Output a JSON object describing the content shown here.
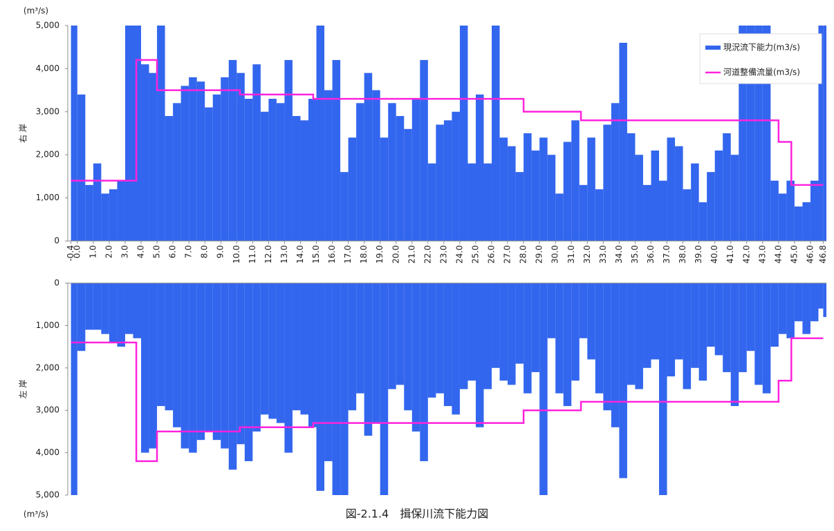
{
  "chart_data": [
    {
      "type": "bar",
      "units": "(m³/s)",
      "ylabel": "右 岸",
      "legend": "upper right",
      "inverted": false,
      "xlim": [
        -0.6,
        47.0
      ],
      "ylim": [
        0,
        5000
      ],
      "yticks": [
        0,
        {
          "value": 1000,
          "label": "1,000"
        },
        {
          "value": 2000,
          "label": "2,000"
        },
        {
          "value": 3000,
          "label": "3,000"
        },
        {
          "value": 4000,
          "label": "4,000"
        },
        {
          "value": 5000,
          "label": "5,000"
        }
      ],
      "xticks": [
        -0.4,
        {
          "value": 0,
          "label": "0.0"
        },
        {
          "value": 1,
          "label": "1.0"
        },
        {
          "value": 2,
          "label": "2.0"
        },
        {
          "value": 3,
          "label": "3.0"
        },
        {
          "value": 4,
          "label": "4.0"
        },
        {
          "value": 5,
          "label": "5.0"
        },
        {
          "value": 6,
          "label": "6.0"
        },
        {
          "value": 7,
          "label": "7.0"
        },
        {
          "value": 8,
          "label": "8.0"
        },
        {
          "value": 9,
          "label": "9.0"
        },
        {
          "value": 10,
          "label": "10.0"
        },
        {
          "value": 11,
          "label": "11.0"
        },
        {
          "value": 12,
          "label": "12.0"
        },
        {
          "value": 13,
          "label": "13.0"
        },
        {
          "value": 14,
          "label": "14.0"
        },
        {
          "value": 15,
          "label": "15.0"
        },
        {
          "value": 16,
          "label": "16.0"
        },
        {
          "value": 17,
          "label": "17.0"
        },
        {
          "value": 18,
          "label": "18.0"
        },
        {
          "value": 19,
          "label": "19.0"
        },
        {
          "value": 20,
          "label": "20.0"
        },
        {
          "value": 21,
          "label": "21.0"
        },
        {
          "value": 22,
          "label": "22.0"
        },
        {
          "value": 23,
          "label": "23.0"
        },
        {
          "value": 24,
          "label": "24.0"
        },
        {
          "value": 25,
          "label": "25.0"
        },
        {
          "value": 26,
          "label": "26.0"
        },
        {
          "value": 27,
          "label": "27.0"
        },
        {
          "value": 28,
          "label": "28.0"
        },
        {
          "value": 29,
          "label": "29.0"
        },
        {
          "value": 30,
          "label": "30.0"
        },
        {
          "value": 31,
          "label": "31.0"
        },
        {
          "value": 32,
          "label": "32.0"
        },
        {
          "value": 33,
          "label": "33.0"
        },
        {
          "value": 34,
          "label": "34.0"
        },
        {
          "value": 35,
          "label": "35.0"
        },
        {
          "value": 36,
          "label": "36.0"
        },
        {
          "value": 37,
          "label": "37.0"
        },
        {
          "value": 38,
          "label": "38.0"
        },
        {
          "value": 39,
          "label": "39.0"
        },
        {
          "value": 40,
          "label": "40.0"
        },
        {
          "value": 41,
          "label": "41.0"
        },
        {
          "value": 42,
          "label": "42.0"
        },
        {
          "value": 43,
          "label": "43.0"
        },
        {
          "value": 44,
          "label": "44.0"
        },
        {
          "value": 45,
          "label": "45.0"
        },
        {
          "value": 46,
          "label": "46.0"
        },
        46.8
      ],
      "x": [
        -0.4,
        0.0,
        0.5,
        1.0,
        1.5,
        2.0,
        2.5,
        3.0,
        3.5,
        4.0,
        4.5,
        5.0,
        5.5,
        6.0,
        6.5,
        7.0,
        7.5,
        8.0,
        8.5,
        9.0,
        9.5,
        10.0,
        10.5,
        11.0,
        11.5,
        12.0,
        12.5,
        13.0,
        13.5,
        14.0,
        14.5,
        15.0,
        15.5,
        16.0,
        16.5,
        17.0,
        17.5,
        18.0,
        18.5,
        19.0,
        19.5,
        20.0,
        20.5,
        21.0,
        21.5,
        22.0,
        22.5,
        23.0,
        23.5,
        24.0,
        24.5,
        25.0,
        25.5,
        26.0,
        26.5,
        27.0,
        27.5,
        28.0,
        28.5,
        29.0,
        29.5,
        30.0,
        30.5,
        31.0,
        31.5,
        32.0,
        32.5,
        33.0,
        33.5,
        34.0,
        34.5,
        35.0,
        35.5,
        36.0,
        36.5,
        37.0,
        37.5,
        38.0,
        38.5,
        39.0,
        39.5,
        40.0,
        40.5,
        41.0,
        41.5,
        42.0,
        42.5,
        43.0,
        43.5,
        44.0,
        44.5,
        45.0,
        45.5,
        46.0,
        46.5,
        46.8
      ],
      "series": [
        {
          "name": "現況流下能力(m3/s)",
          "color": "#3366ee",
          "values": [
            5000,
            3400,
            1300,
            1800,
            1100,
            1200,
            1400,
            5000,
            5000,
            4100,
            3900,
            5000,
            2900,
            3200,
            3600,
            3800,
            3700,
            3100,
            3400,
            3800,
            4200,
            3900,
            3300,
            4100,
            3000,
            3300,
            3200,
            4200,
            2900,
            2800,
            3300,
            5000,
            3500,
            4200,
            1600,
            2400,
            3200,
            3900,
            3500,
            2400,
            3200,
            2900,
            2600,
            3300,
            4200,
            1800,
            2700,
            2800,
            3000,
            5000,
            1800,
            3400,
            1800,
            5000,
            2400,
            2200,
            1600,
            2500,
            2100,
            2400,
            2000,
            1100,
            2300,
            2800,
            1300,
            2400,
            1200,
            2700,
            3200,
            4600,
            2500,
            2000,
            1300,
            2100,
            1400,
            2400,
            2200,
            1200,
            1800,
            900,
            1600,
            2100,
            2500,
            2000,
            5000,
            5000,
            5000,
            5000,
            1400,
            1100,
            1400,
            800,
            900,
            1400,
            5000,
            5000
          ]
        },
        {
          "name": "河道整備流量(m3/s)",
          "type": "line",
          "color": "#ff22dd",
          "x": [
            -0.4,
            3.7,
            3.7,
            5.0,
            5.0,
            10.2,
            10.2,
            14.8,
            14.8,
            28.0,
            28.0,
            31.6,
            31.6,
            44.0,
            44.0,
            44.8,
            44.8,
            46.8
          ],
          "values": [
            1400,
            1400,
            4200,
            4200,
            3500,
            3500,
            3400,
            3400,
            3300,
            3300,
            3000,
            3000,
            2800,
            2800,
            2300,
            2300,
            1300,
            1300
          ]
        }
      ]
    },
    {
      "type": "bar",
      "units": "(m³/s)",
      "ylabel": "左 岸",
      "inverted": true,
      "xlim": [
        -0.6,
        47.0
      ],
      "ylim": [
        0,
        5000
      ],
      "yticks": [
        0,
        {
          "value": 1000,
          "label": "1,000"
        },
        {
          "value": 2000,
          "label": "2,000"
        },
        {
          "value": 3000,
          "label": "3,000"
        },
        {
          "value": 4000,
          "label": "4,000"
        },
        {
          "value": 5000,
          "label": "5,000"
        }
      ],
      "x": [
        -0.4,
        0.0,
        0.5,
        1.0,
        1.5,
        2.0,
        2.5,
        3.0,
        3.5,
        4.0,
        4.5,
        5.0,
        5.5,
        6.0,
        6.5,
        7.0,
        7.5,
        8.0,
        8.5,
        9.0,
        9.5,
        10.0,
        10.5,
        11.0,
        11.5,
        12.0,
        12.5,
        13.0,
        13.5,
        14.0,
        14.5,
        15.0,
        15.5,
        16.0,
        16.5,
        17.0,
        17.5,
        18.0,
        18.5,
        19.0,
        19.5,
        20.0,
        20.5,
        21.0,
        21.5,
        22.0,
        22.5,
        23.0,
        23.5,
        24.0,
        24.5,
        25.0,
        25.5,
        26.0,
        26.5,
        27.0,
        27.5,
        28.0,
        28.5,
        29.0,
        29.5,
        30.0,
        30.5,
        31.0,
        31.5,
        32.0,
        32.5,
        33.0,
        33.5,
        34.0,
        34.5,
        35.0,
        35.5,
        36.0,
        36.5,
        37.0,
        37.5,
        38.0,
        38.5,
        39.0,
        39.5,
        40.0,
        40.5,
        41.0,
        41.5,
        42.0,
        42.5,
        43.0,
        43.5,
        44.0,
        44.5,
        45.0,
        45.5,
        46.0,
        46.5,
        46.8
      ],
      "series": [
        {
          "color": "#3366ee",
          "values": [
            5000,
            1600,
            1100,
            1100,
            1200,
            1400,
            1500,
            1200,
            1300,
            4000,
            3900,
            2900,
            3000,
            3400,
            3900,
            4000,
            3700,
            3500,
            3700,
            3900,
            4400,
            3800,
            4200,
            3500,
            3100,
            3200,
            3300,
            4000,
            3000,
            3100,
            3400,
            4900,
            4200,
            5000,
            5000,
            3000,
            2600,
            3600,
            3300,
            5000,
            2500,
            2400,
            3000,
            3500,
            4200,
            2700,
            2600,
            2900,
            3100,
            2500,
            2300,
            3400,
            2500,
            2000,
            2300,
            2400,
            1900,
            2600,
            2100,
            5000,
            1300,
            2600,
            2900,
            2300,
            1300,
            1800,
            2600,
            3000,
            3400,
            4600,
            2400,
            2500,
            2000,
            1800,
            5000,
            2200,
            1800,
            2500,
            2000,
            2300,
            1500,
            1700,
            2100,
            2900,
            2100,
            1600,
            2400,
            2600,
            1500,
            1200,
            1300,
            900,
            1200,
            900,
            600,
            800
          ]
        },
        {
          "type": "line",
          "color": "#ff22dd",
          "x": [
            -0.4,
            3.7,
            3.7,
            5.0,
            5.0,
            10.2,
            10.2,
            14.8,
            14.8,
            28.0,
            28.0,
            31.6,
            31.6,
            44.0,
            44.0,
            44.8,
            44.8,
            46.8
          ],
          "values": [
            1400,
            1400,
            4200,
            4200,
            3500,
            3500,
            3400,
            3400,
            3300,
            3300,
            3000,
            3000,
            2800,
            2800,
            2300,
            2300,
            1300,
            1300
          ]
        }
      ]
    }
  ],
  "caption": "図-2.1.4　揖保川流下能力図"
}
